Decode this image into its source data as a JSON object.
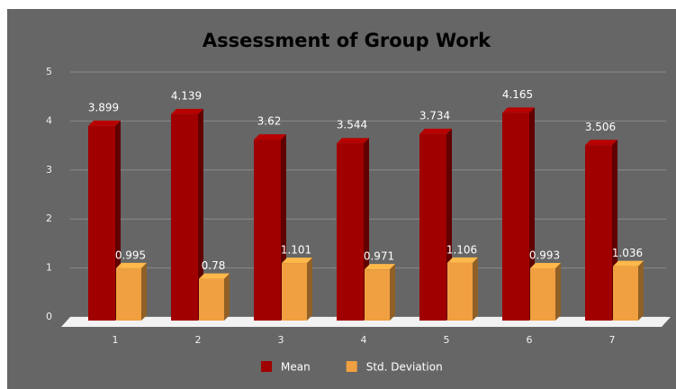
{
  "chart_data": {
    "type": "bar3d",
    "title": "Assessment of Group Work",
    "categories": [
      "1",
      "2",
      "3",
      "4",
      "5",
      "6",
      "7"
    ],
    "series": [
      {
        "name": "Mean",
        "color": "#a00000",
        "values": [
          3.899,
          4.139,
          3.62,
          3.544,
          3.734,
          4.165,
          3.506
        ]
      },
      {
        "name": "Std. Deviation",
        "color": "#f0a040",
        "values": [
          0.995,
          0.78,
          1.101,
          0.971,
          1.106,
          0.993,
          1.036
        ]
      }
    ],
    "ylim": [
      0,
      5
    ],
    "yticks": [
      0,
      1,
      2,
      3,
      4,
      5
    ],
    "grid": true,
    "legend": "bottom"
  }
}
